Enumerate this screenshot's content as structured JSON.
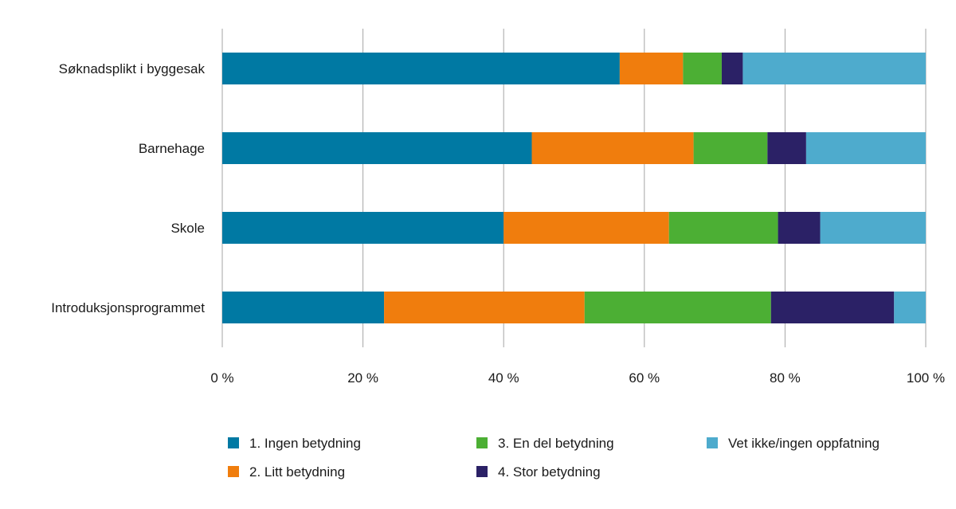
{
  "chart_data": {
    "type": "bar",
    "orientation": "horizontal",
    "stacked": true,
    "title": "",
    "xlabel": "",
    "ylabel": "",
    "xlim": [
      0,
      100
    ],
    "xticks": [
      "0 %",
      "20 %",
      "40 %",
      "60 %",
      "80 %",
      "100 %"
    ],
    "categories": [
      "Søknadsplikt i byggesak",
      "Barnehage",
      "Skole",
      "Introduksjonsprogrammet"
    ],
    "series": [
      {
        "name": "1. Ingen betydning",
        "color": "#0079a3",
        "values": [
          56.5,
          44,
          40,
          23
        ]
      },
      {
        "name": "2. Litt betydning",
        "color": "#f07d0d",
        "values": [
          9,
          23,
          23.5,
          28.5
        ]
      },
      {
        "name": "3. En del betydning",
        "color": "#4caf34",
        "values": [
          5.5,
          10.5,
          15.5,
          26.5
        ]
      },
      {
        "name": "4. Stor betydning",
        "color": "#2b2166",
        "values": [
          3,
          5.5,
          6,
          17.5
        ]
      },
      {
        "name": "Vet ikke/ingen oppfatning",
        "color": "#4eabcd",
        "values": [
          26,
          17,
          15,
          4.5
        ]
      }
    ],
    "grid": true,
    "legend_position": "bottom"
  }
}
